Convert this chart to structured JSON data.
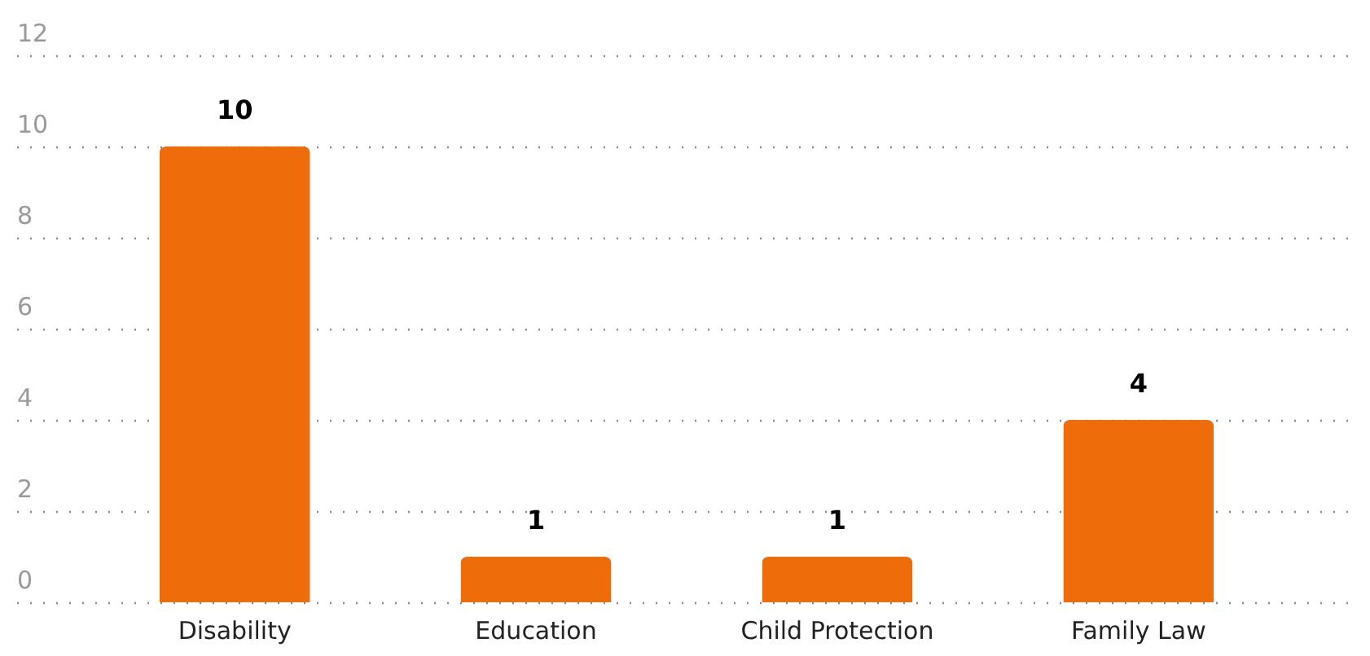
{
  "chart_data": {
    "type": "bar",
    "categories": [
      "Disability",
      "Education",
      "Child Protection",
      "Family Law"
    ],
    "values": [
      10,
      1,
      1,
      4
    ],
    "color": "#ee6c0a",
    "ylim": [
      0,
      12
    ],
    "yticks": [
      0,
      2,
      4,
      6,
      8,
      10,
      12
    ],
    "grid": "y",
    "data_labels": true
  }
}
